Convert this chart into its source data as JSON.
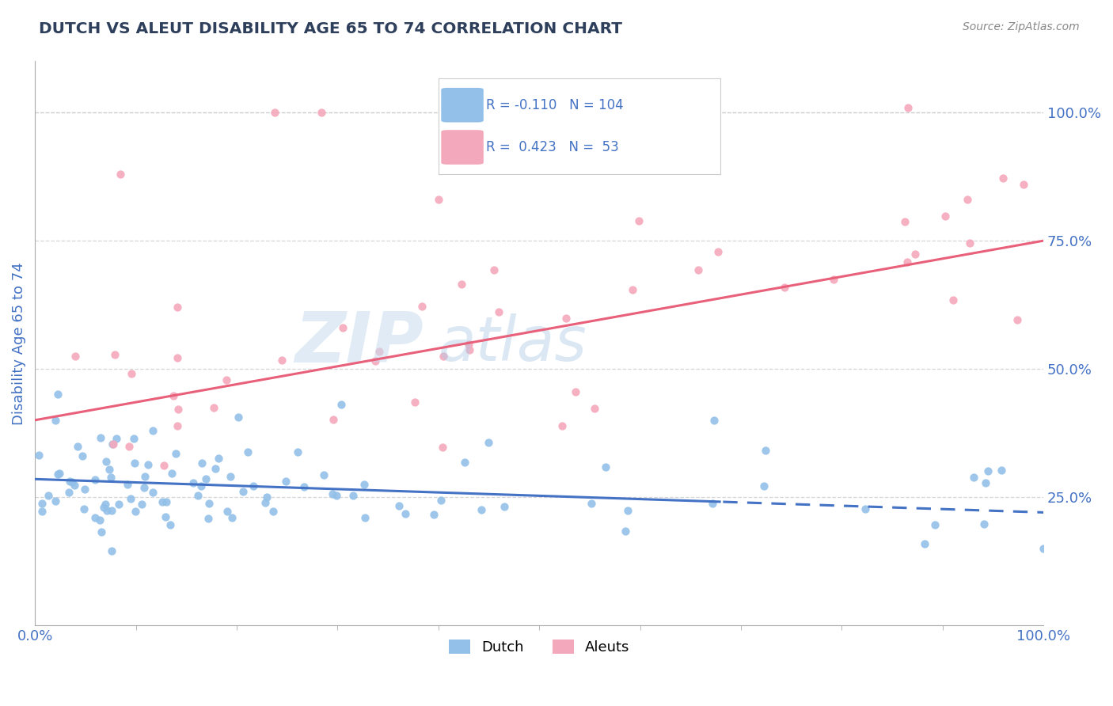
{
  "title": "DUTCH VS ALEUT DISABILITY AGE 65 TO 74 CORRELATION CHART",
  "source_text": "Source: ZipAtlas.com",
  "ylabel": "Disability Age 65 to 74",
  "xlim": [
    0.0,
    1.0
  ],
  "ylim": [
    0.0,
    1.1
  ],
  "dutch_color": "#92C0E8",
  "aleut_color": "#F4A8BC",
  "dutch_line_color": "#4472C4",
  "aleut_line_color": "#E8607A",
  "dutch_R": -0.11,
  "dutch_N": 104,
  "aleut_R": 0.423,
  "aleut_N": 53,
  "background_color": "#FFFFFF",
  "grid_color": "#CCCCCC",
  "title_color": "#2E3F5C",
  "axis_label_color": "#4472C4",
  "legend_text_color": "#4472C4",
  "watermark_color": "#D8E8F0"
}
